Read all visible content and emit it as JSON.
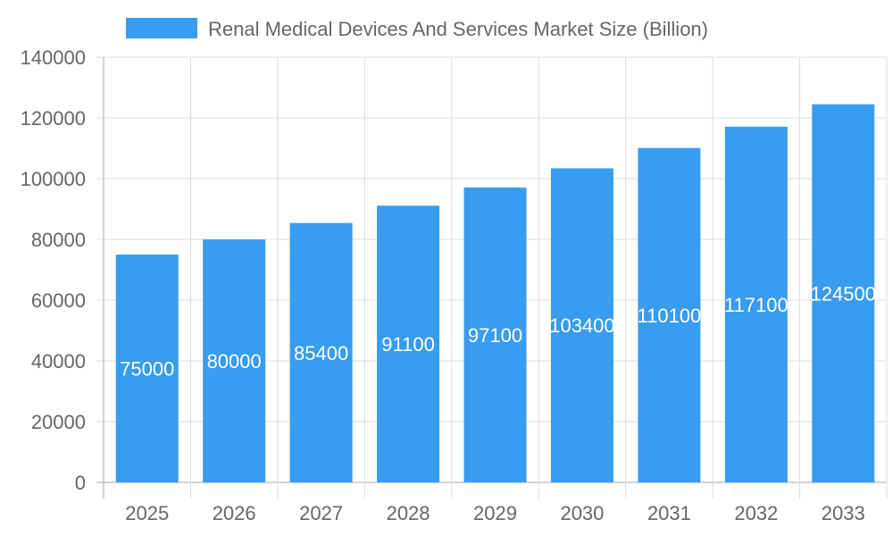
{
  "chart_data": {
    "type": "bar",
    "categories": [
      "2025",
      "2026",
      "2027",
      "2028",
      "2029",
      "2030",
      "2031",
      "2032",
      "2033"
    ],
    "series": [
      {
        "name": "Renal Medical Devices And Services Market Size (Billion)",
        "values": [
          75000,
          80000,
          85400,
          91100,
          97100,
          103400,
          110100,
          117100,
          124500
        ]
      }
    ],
    "ylim": [
      0,
      140000
    ],
    "yticks": [
      0,
      20000,
      40000,
      60000,
      80000,
      100000,
      120000,
      140000
    ],
    "grid": true,
    "legend": "top",
    "data_labels": true,
    "colors": {
      "bar": "#389cf0",
      "grid": "#dddddd",
      "text": "#666666"
    }
  }
}
